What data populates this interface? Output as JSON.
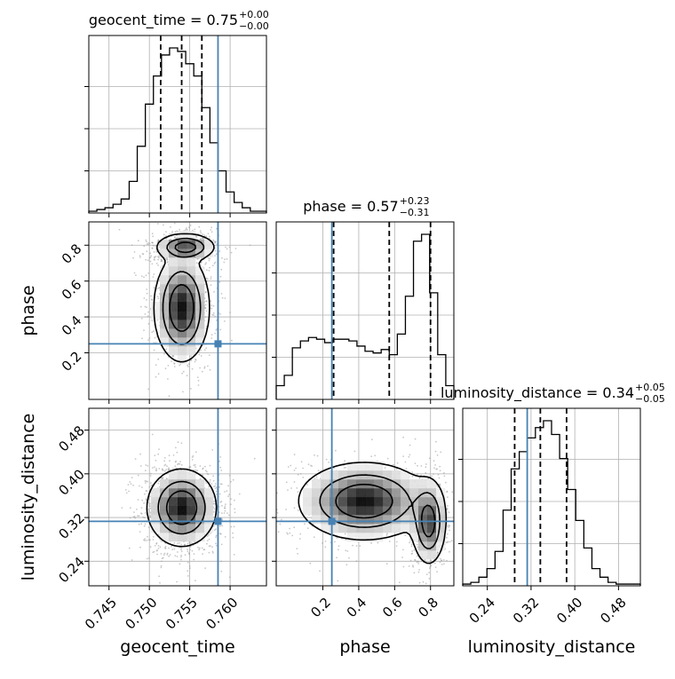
{
  "chart_data": {
    "type": "corner",
    "params": [
      "geocent_time",
      "phase",
      "luminosity_distance"
    ],
    "axis_labels": {
      "geocent_time": "geocent_time",
      "phase": "phase",
      "luminosity_distance": "luminosity_distance"
    },
    "ranges": {
      "geocent_time": [
        0.7425,
        0.7645
      ],
      "phase": [
        -0.06,
        0.93
      ],
      "luminosity_distance": [
        0.195,
        0.52
      ]
    },
    "ticks": {
      "geocent_time": [
        0.745,
        0.75,
        0.755,
        0.76
      ],
      "phase": [
        0.2,
        0.4,
        0.6,
        0.8
      ],
      "luminosity_distance": [
        0.24,
        0.32,
        0.4,
        0.48
      ]
    },
    "tick_labels": {
      "geocent_time": [
        "0.745",
        "0.750",
        "0.755",
        "0.760"
      ],
      "phase": [
        "0.2",
        "0.4",
        "0.6",
        "0.8"
      ],
      "luminosity_distance": [
        "0.24",
        "0.32",
        "0.40",
        "0.48"
      ]
    },
    "truths": {
      "geocent_time": 0.7585,
      "phase": 0.25,
      "luminosity_distance": 0.313
    },
    "titles": {
      "geocent_time": {
        "text": "geocent_time = 0.75",
        "plus": "+0.00",
        "minus": "−0.00"
      },
      "phase": {
        "text": "phase = 0.57",
        "plus": "+0.23",
        "minus": "−0.31"
      },
      "luminosity_distance": {
        "text": "luminosity_distance = 0.34",
        "plus": "+0.05",
        "minus": "−0.05"
      }
    },
    "quantiles": {
      "geocent_time": [
        0.7514,
        0.754,
        0.7565
      ],
      "phase": [
        0.26,
        0.57,
        0.8
      ],
      "luminosity_distance": [
        0.29,
        0.337,
        0.385
      ]
    },
    "histograms": {
      "geocent_time": [
        1,
        2,
        3,
        5,
        8,
        18,
        38,
        62,
        78,
        90,
        94,
        92,
        85,
        78,
        60,
        40,
        24,
        12,
        6,
        3,
        1,
        1
      ],
      "phase": [
        8,
        14,
        30,
        34,
        36,
        35,
        33,
        35,
        35,
        34,
        31,
        28,
        27,
        29,
        26,
        38,
        60,
        92,
        96,
        62,
        26,
        8
      ],
      "luminosity_distance": [
        1,
        2,
        5,
        10,
        20,
        44,
        68,
        78,
        86,
        92,
        96,
        88,
        74,
        56,
        38,
        22,
        10,
        5,
        2,
        1,
        1,
        1
      ]
    },
    "blobs": {
      "geocent_time|phase": [
        {
          "mx": 0.7545,
          "my": 0.79,
          "sx": 0.0017,
          "sy": 0.035,
          "w": 0.45
        },
        {
          "mx": 0.754,
          "my": 0.45,
          "sx": 0.0016,
          "sy": 0.14,
          "w": 0.55
        }
      ],
      "geocent_time|luminosity_distance": [
        {
          "mx": 0.754,
          "my": 0.338,
          "sx": 0.002,
          "sy": 0.033,
          "w": 1.0
        }
      ],
      "phase|luminosity_distance": [
        {
          "mx": 0.79,
          "my": 0.31,
          "sx": 0.045,
          "sy": 0.036,
          "w": 0.45
        },
        {
          "mx": 0.43,
          "my": 0.35,
          "sx": 0.17,
          "sy": 0.033,
          "w": 0.55
        }
      ]
    },
    "colors": {
      "truth": "#4682b4",
      "hist": "#000000",
      "scatter": "#9a9a9a",
      "grid": "#b0b0b0"
    },
    "grid": true
  }
}
